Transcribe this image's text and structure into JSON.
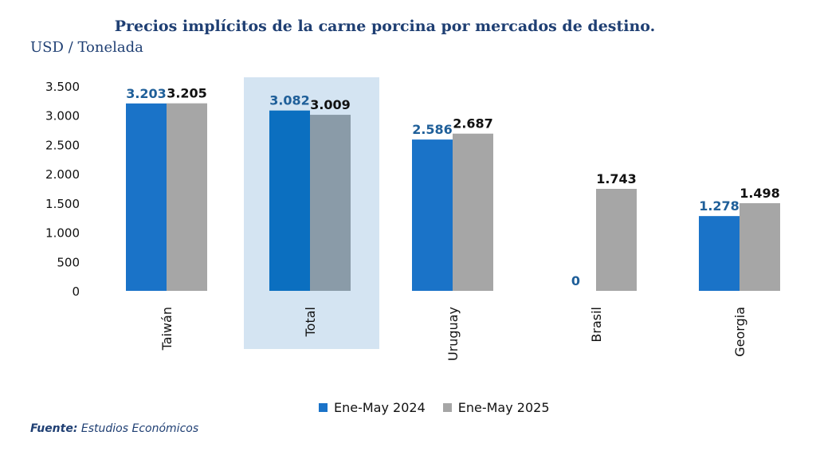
{
  "chart_data": {
    "type": "bar",
    "title": "Precios implícitos de la carne porcina por mercados de destino.",
    "ylabel": "USD / Tonelada",
    "categories": [
      "Taiwán",
      "Total",
      "Uruguay",
      "Brasil",
      "Georgia"
    ],
    "series": [
      {
        "name": "Ene-May 2024",
        "values": [
          3203,
          3082,
          2586,
          0,
          1278
        ],
        "labels": [
          "3.203",
          "3.082",
          "2.586",
          "0",
          "1.278"
        ]
      },
      {
        "name": "Ene-May 2025",
        "values": [
          3205,
          3009,
          2687,
          1743,
          1498
        ],
        "labels": [
          "3.205",
          "3.009",
          "2.687",
          "1.743",
          "1.498"
        ]
      }
    ],
    "yticks": [
      0,
      500,
      1000,
      1500,
      2000,
      2500,
      3000,
      3500
    ],
    "ytick_labels": [
      "0",
      "500",
      "1.000",
      "1.500",
      "2.000",
      "2.500",
      "3.000",
      "3.500"
    ],
    "ylim": [
      0,
      3500
    ],
    "highlight_category": "Total",
    "legend_position": "bottom",
    "grid": false
  },
  "colors": {
    "series_2024": "#1a73c8",
    "series_2025": "#a6a6a6",
    "highlight_2024": "#0b6fc0",
    "highlight_2025": "#8a9ba8",
    "highlight_bg": "#d4e4f2",
    "label_2024": "#1f5f99",
    "label_2025": "#111111"
  },
  "source": {
    "label": "Fuente:",
    "text": "Estudios Económicos"
  }
}
